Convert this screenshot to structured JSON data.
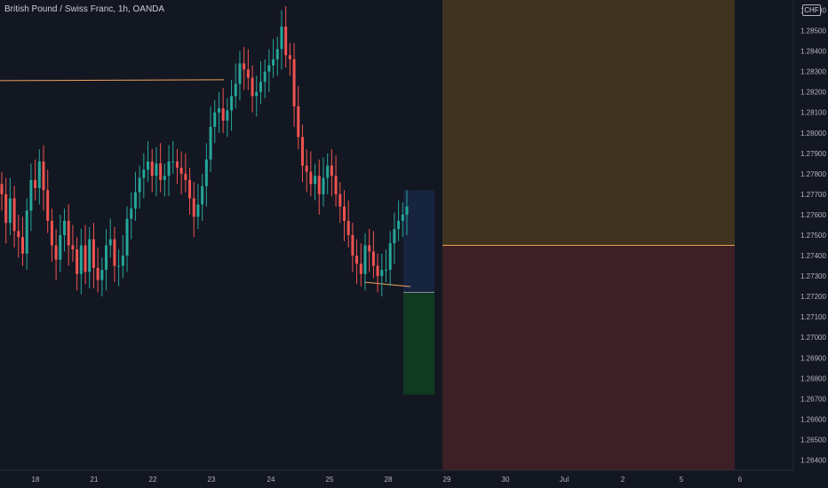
{
  "header": {
    "title": "British Pound / Swiss Franc, 1h, OANDA",
    "currency_badge": "CHF"
  },
  "colors": {
    "background": "#131722",
    "up": "#26a69a",
    "down": "#ef5350",
    "axis_text": "#b2b5be",
    "hline": "#f0a55c",
    "zone_top": "#40331f",
    "zone_bottom": "#3d1f26",
    "box_blue": "#16243f",
    "box_green": "#113a23",
    "mid_line": "#e8a24b"
  },
  "chart_data": {
    "type": "candlestick",
    "symbol": "GBPCHF",
    "interval": "1h",
    "y_axis": {
      "min": 1.2635,
      "max": 1.2865,
      "ticks": [
        "1.26400",
        "1.26500",
        "1.26600",
        "1.26700",
        "1.26800",
        "1.26900",
        "1.27000",
        "1.27100",
        "1.27200",
        "1.27300",
        "1.27400",
        "1.27500",
        "1.27600",
        "1.27700",
        "1.27800",
        "1.27900",
        "1.28000",
        "1.28100",
        "1.28200",
        "1.28300",
        "1.28400",
        "1.28500",
        "1.28600"
      ]
    },
    "x_axis": {
      "labels": [
        "18",
        "21",
        "22",
        "23",
        "24",
        "25",
        "28",
        "29",
        "30",
        "Jul",
        "2",
        "5",
        "6"
      ],
      "label_index": [
        0,
        1,
        2,
        3,
        4,
        5,
        6,
        7,
        8,
        9,
        10,
        11,
        12
      ]
    },
    "candles_close": [
      1.277,
      1.2756,
      1.2768,
      1.2752,
      1.2749,
      1.2741,
      1.2762,
      1.2777,
      1.2773,
      1.2786,
      1.2772,
      1.2757,
      1.2745,
      1.2738,
      1.275,
      1.2757,
      1.2745,
      1.2743,
      1.2731,
      1.2745,
      1.2732,
      1.2748,
      1.2734,
      1.2728,
      1.2733,
      1.2745,
      1.2748,
      1.2735,
      1.2735,
      1.274,
      1.2758,
      1.2763,
      1.2771,
      1.2778,
      1.2782,
      1.2786,
      1.2779,
      1.2785,
      1.2777,
      1.2779,
      1.2786,
      1.2786,
      1.2783,
      1.278,
      1.2777,
      1.2768,
      1.2759,
      1.2765,
      1.2774,
      1.2787,
      1.2803,
      1.281,
      1.2812,
      1.2806,
      1.2811,
      1.2818,
      1.2824,
      1.2834,
      1.2831,
      1.2827,
      1.2818,
      1.282,
      1.2825,
      1.283,
      1.2833,
      1.2836,
      1.2841,
      1.2852,
      1.2838,
      1.2836,
      1.2813,
      1.2798,
      1.2784,
      1.2781,
      1.2775,
      1.2779,
      1.277,
      1.2778,
      1.2784,
      1.2779,
      1.277,
      1.2764,
      1.2757,
      1.275,
      1.274,
      1.2736,
      1.2731,
      1.2745,
      1.2742,
      1.2735,
      1.273,
      1.2733,
      1.2733,
      1.2746,
      1.2753,
      1.2757,
      1.276,
      1.2764
    ],
    "horizontal_lines": [
      {
        "price": 1.2826,
        "note": "resistance"
      },
      {
        "price": 1.2745,
        "note": "position divider"
      }
    ],
    "position_tool": {
      "blue_box": {
        "top": 1.2772,
        "bottom": 1.2722
      },
      "green_box": {
        "top": 1.2722,
        "bottom": 1.2672
      }
    },
    "zones": {
      "upper": {
        "top": 1.2865,
        "bottom": 1.2745
      },
      "lower": {
        "top": 1.2745,
        "bottom": 1.2635
      }
    }
  }
}
